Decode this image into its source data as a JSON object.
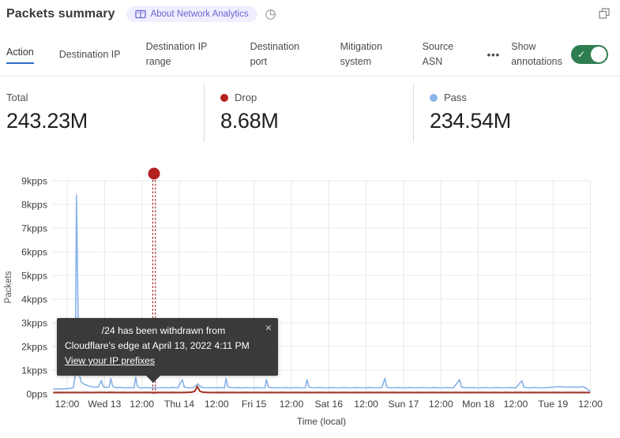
{
  "header": {
    "title": "Packets summary",
    "about_badge": "About Network Analytics"
  },
  "tabs": {
    "items": [
      {
        "label": "Action",
        "active": true
      },
      {
        "label": "Destination IP"
      },
      {
        "label": "Destination IP range"
      },
      {
        "label": "Destination port"
      },
      {
        "label": "Mitigation system"
      },
      {
        "label": "Source ASN"
      }
    ],
    "more_label": "•••",
    "annotations_label": "Show annotations",
    "annotations_enabled": true,
    "toggle_check": "✓"
  },
  "stats": {
    "total": {
      "label": "Total",
      "value": "243.23M"
    },
    "drop": {
      "label": "Drop",
      "value": "8.68M",
      "color": "#b42121"
    },
    "pass": {
      "label": "Pass",
      "value": "234.54M",
      "color": "#8cb6e8"
    }
  },
  "annotation_tooltip": {
    "line1": "/24 has been withdrawn from",
    "line2": "Cloudflare's edge at April 13, 2022 4:11 PM",
    "link_label": "View your IP prefixes",
    "close": "×"
  },
  "chart_data": {
    "type": "line",
    "title": "Packets summary",
    "xlabel": "Time (local)",
    "ylabel": "Packets",
    "x_ticks": [
      "12:00",
      "Wed 13",
      "12:00",
      "Thu 14",
      "12:00",
      "Fri 15",
      "12:00",
      "Sat 16",
      "12:00",
      "Sun 17",
      "12:00",
      "Mon 18",
      "12:00",
      "Tue 19",
      "12:00"
    ],
    "y_ticks": [
      "0pps",
      "1kpps",
      "2kpps",
      "3kpps",
      "4kpps",
      "5kpps",
      "6kpps",
      "7kpps",
      "8kpps",
      "9kpps"
    ],
    "ylim": [
      0,
      9000
    ],
    "x_domain_hours": [
      -4.5,
      168
    ],
    "tick_interval_hours": 12,
    "grid": true,
    "annotation": {
      "hour": 27.9,
      "color": "#b32020",
      "line_color": "#a02c24",
      "label": "/24 has been withdrawn from Cloudflare's edge at April 13, 2022 4:11 PM"
    },
    "series": [
      {
        "name": "Drop",
        "color": "#a33327",
        "width": 2,
        "points": [
          [
            -4.5,
            55
          ],
          [
            -2,
            60
          ],
          [
            0,
            55
          ],
          [
            2,
            60
          ],
          [
            4,
            55
          ],
          [
            6,
            60
          ],
          [
            8,
            55
          ],
          [
            10,
            60
          ],
          [
            12,
            55
          ],
          [
            14,
            65
          ],
          [
            16,
            55
          ],
          [
            18,
            60
          ],
          [
            20,
            55
          ],
          [
            22,
            60
          ],
          [
            24,
            55
          ],
          [
            26,
            60
          ],
          [
            28,
            55
          ],
          [
            30,
            60
          ],
          [
            32,
            55
          ],
          [
            34,
            60
          ],
          [
            36,
            55
          ],
          [
            38,
            60
          ],
          [
            40,
            70
          ],
          [
            41,
            110
          ],
          [
            41.8,
            320
          ],
          [
            42.6,
            110
          ],
          [
            43.5,
            70
          ],
          [
            45,
            60
          ],
          [
            47,
            55
          ],
          [
            49,
            60
          ],
          [
            51,
            55
          ],
          [
            53,
            60
          ],
          [
            55,
            55
          ],
          [
            57,
            60
          ],
          [
            59,
            55
          ],
          [
            61,
            60
          ],
          [
            63,
            55
          ],
          [
            65,
            60
          ],
          [
            67,
            55
          ],
          [
            69,
            60
          ],
          [
            71,
            55
          ],
          [
            73,
            60
          ],
          [
            75,
            55
          ],
          [
            77,
            60
          ],
          [
            79,
            55
          ],
          [
            81,
            60
          ],
          [
            83,
            55
          ],
          [
            85,
            60
          ],
          [
            87,
            55
          ],
          [
            89,
            60
          ],
          [
            91,
            55
          ],
          [
            93,
            60
          ],
          [
            95,
            55
          ],
          [
            97,
            60
          ],
          [
            99,
            55
          ],
          [
            101,
            60
          ],
          [
            103,
            55
          ],
          [
            105,
            60
          ],
          [
            107,
            55
          ],
          [
            109,
            60
          ],
          [
            111,
            55
          ],
          [
            113,
            60
          ],
          [
            115,
            55
          ],
          [
            117,
            60
          ],
          [
            119,
            55
          ],
          [
            121,
            60
          ],
          [
            123,
            55
          ],
          [
            125,
            60
          ],
          [
            127,
            55
          ],
          [
            129,
            60
          ],
          [
            131,
            55
          ],
          [
            133,
            60
          ],
          [
            135,
            55
          ],
          [
            137,
            60
          ],
          [
            139,
            55
          ],
          [
            141,
            60
          ],
          [
            143,
            55
          ],
          [
            145,
            60
          ],
          [
            147,
            55
          ],
          [
            149,
            60
          ],
          [
            151,
            55
          ],
          [
            153,
            60
          ],
          [
            155,
            55
          ],
          [
            157,
            60
          ],
          [
            159,
            55
          ],
          [
            161,
            60
          ],
          [
            163,
            55
          ],
          [
            165,
            60
          ],
          [
            167,
            55
          ],
          [
            167.9,
            55
          ]
        ]
      },
      {
        "name": "Pass",
        "color": "#87b1e8",
        "width": 1.6,
        "points": [
          [
            -4.5,
            200
          ],
          [
            -3,
            210
          ],
          [
            -1.5,
            200
          ],
          [
            0,
            220
          ],
          [
            1,
            230
          ],
          [
            2,
            260
          ],
          [
            2.6,
            800
          ],
          [
            3,
            8400
          ],
          [
            3.5,
            3500
          ],
          [
            3.8,
            900
          ],
          [
            4.5,
            500
          ],
          [
            5.5,
            400
          ],
          [
            7,
            330
          ],
          [
            8,
            300
          ],
          [
            9,
            280
          ],
          [
            10,
            290
          ],
          [
            11,
            560
          ],
          [
            11.6,
            300
          ],
          [
            12.5,
            270
          ],
          [
            13.5,
            280
          ],
          [
            14,
            650
          ],
          [
            14.6,
            320
          ],
          [
            15.5,
            260
          ],
          [
            17,
            270
          ],
          [
            18.5,
            250
          ],
          [
            20,
            260
          ],
          [
            21.5,
            250
          ],
          [
            22,
            700
          ],
          [
            22.6,
            300
          ],
          [
            23.5,
            250
          ],
          [
            25,
            260
          ],
          [
            26.5,
            250
          ],
          [
            28,
            260
          ],
          [
            29.5,
            250
          ],
          [
            31,
            260
          ],
          [
            32.5,
            250
          ],
          [
            34,
            270
          ],
          [
            35.5,
            250
          ],
          [
            37,
            600
          ],
          [
            37.6,
            280
          ],
          [
            39,
            250
          ],
          [
            40.5,
            260
          ],
          [
            42,
            420
          ],
          [
            43,
            280
          ],
          [
            44.5,
            250
          ],
          [
            46,
            260
          ],
          [
            47.5,
            250
          ],
          [
            49,
            260
          ],
          [
            50.5,
            250
          ],
          [
            51,
            650
          ],
          [
            51.6,
            290
          ],
          [
            53,
            250
          ],
          [
            54.5,
            260
          ],
          [
            56,
            250
          ],
          [
            57.5,
            260
          ],
          [
            59,
            250
          ],
          [
            60.5,
            260
          ],
          [
            62,
            250
          ],
          [
            63.5,
            250
          ],
          [
            64,
            600
          ],
          [
            64.6,
            280
          ],
          [
            66,
            250
          ],
          [
            67.5,
            260
          ],
          [
            69,
            250
          ],
          [
            70.5,
            260
          ],
          [
            72,
            250
          ],
          [
            73.5,
            260
          ],
          [
            75,
            250
          ],
          [
            76.5,
            250
          ],
          [
            77,
            600
          ],
          [
            77.6,
            280
          ],
          [
            79,
            250
          ],
          [
            81,
            260
          ],
          [
            83,
            250
          ],
          [
            85,
            260
          ],
          [
            87,
            250
          ],
          [
            89,
            260
          ],
          [
            91,
            250
          ],
          [
            93,
            260
          ],
          [
            95,
            250
          ],
          [
            97,
            260
          ],
          [
            99,
            250
          ],
          [
            101,
            260
          ],
          [
            102,
            650
          ],
          [
            102.6,
            280
          ],
          [
            104,
            250
          ],
          [
            106,
            260
          ],
          [
            108,
            250
          ],
          [
            110,
            260
          ],
          [
            112,
            250
          ],
          [
            114,
            260
          ],
          [
            116,
            250
          ],
          [
            118,
            260
          ],
          [
            120,
            250
          ],
          [
            122,
            260
          ],
          [
            124,
            250
          ],
          [
            126,
            600
          ],
          [
            126.6,
            280
          ],
          [
            128,
            250
          ],
          [
            130,
            260
          ],
          [
            132,
            250
          ],
          [
            134,
            260
          ],
          [
            136,
            250
          ],
          [
            138,
            260
          ],
          [
            140,
            250
          ],
          [
            142,
            260
          ],
          [
            144,
            250
          ],
          [
            146,
            550
          ],
          [
            146.6,
            280
          ],
          [
            148,
            250
          ],
          [
            150,
            260
          ],
          [
            152,
            250
          ],
          [
            154,
            260
          ],
          [
            156,
            280
          ],
          [
            158,
            300
          ],
          [
            160,
            280
          ],
          [
            162,
            290
          ],
          [
            164,
            280
          ],
          [
            165.5,
            300
          ],
          [
            166.5,
            250
          ],
          [
            167.3,
            160
          ],
          [
            167.9,
            110
          ]
        ]
      }
    ]
  }
}
